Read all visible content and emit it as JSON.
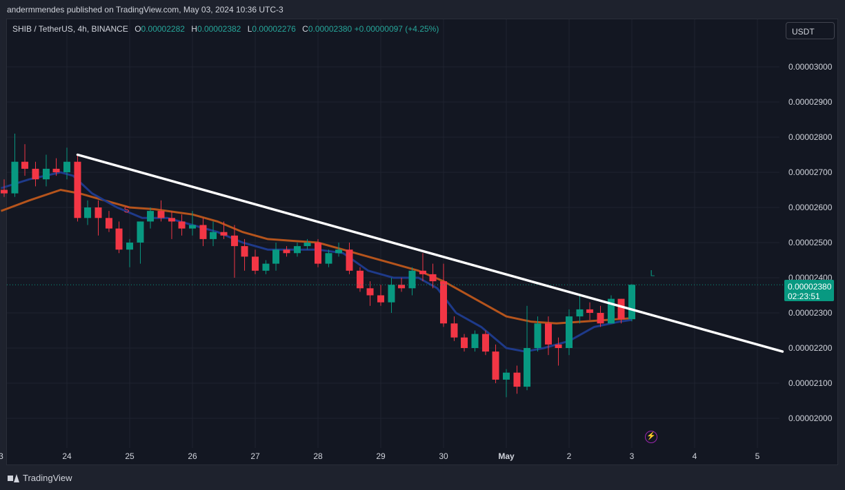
{
  "caption": "andermmendes published on TradingView.com, May 03, 2024 10:36 UTC-3",
  "legend": {
    "symbol": "SHIB / TetherUS, 4h, BINANCE",
    "o_label": "O",
    "o": "0.00002282",
    "h_label": "H",
    "h": "0.00002382",
    "l_label": "L",
    "l": "0.00002276",
    "c_label": "C",
    "c": "0.00002380",
    "change": "+0.00000097 (+4.25%)"
  },
  "currency": "USDT",
  "last_price": {
    "price": "0.00002380",
    "countdown": "02:23:51"
  },
  "brand": "TradingView",
  "chart_data": {
    "type": "candlestick",
    "y_unit_scale": "x 1e-8 USDT",
    "ylim": [
      1950,
      3090
    ],
    "y_tick_labels": [
      "0.00003000",
      "0.00002900",
      "0.00002800",
      "0.00002700",
      "0.00002600",
      "0.00002500",
      "0.00002400",
      "0.00002300",
      "0.00002200",
      "0.00002100",
      "0.00002000"
    ],
    "y_ticks": [
      3000,
      2900,
      2800,
      2700,
      2600,
      2500,
      2400,
      2300,
      2200,
      2100,
      2000
    ],
    "x_tick_labels": [
      "3",
      "24",
      "25",
      "26",
      "27",
      "28",
      "29",
      "30",
      "May",
      "2",
      "3",
      "4",
      "5"
    ],
    "x_ticks": [
      -0.05,
      1,
      2,
      3,
      4,
      5,
      6,
      7,
      8,
      9,
      10,
      11,
      12
    ],
    "candles": [
      {
        "t": 0.0,
        "o": 2650,
        "h": 2680,
        "l": 2630,
        "c": 2640
      },
      {
        "t": 0.17,
        "o": 2640,
        "h": 2810,
        "l": 2630,
        "c": 2730
      },
      {
        "t": 0.33,
        "o": 2730,
        "h": 2780,
        "l": 2690,
        "c": 2710
      },
      {
        "t": 0.5,
        "o": 2710,
        "h": 2730,
        "l": 2660,
        "c": 2680
      },
      {
        "t": 0.67,
        "o": 2680,
        "h": 2750,
        "l": 2660,
        "c": 2710
      },
      {
        "t": 0.83,
        "o": 2710,
        "h": 2740,
        "l": 2690,
        "c": 2700
      },
      {
        "t": 1.0,
        "o": 2700,
        "h": 2770,
        "l": 2680,
        "c": 2730
      },
      {
        "t": 1.17,
        "o": 2730,
        "h": 2750,
        "l": 2560,
        "c": 2570
      },
      {
        "t": 1.33,
        "o": 2570,
        "h": 2620,
        "l": 2550,
        "c": 2600
      },
      {
        "t": 1.5,
        "o": 2600,
        "h": 2620,
        "l": 2520,
        "c": 2570
      },
      {
        "t": 1.67,
        "o": 2570,
        "h": 2590,
        "l": 2530,
        "c": 2540
      },
      {
        "t": 1.83,
        "o": 2540,
        "h": 2560,
        "l": 2470,
        "c": 2480
      },
      {
        "t": 2.0,
        "o": 2480,
        "h": 2510,
        "l": 2430,
        "c": 2500
      },
      {
        "t": 2.17,
        "o": 2500,
        "h": 2560,
        "l": 2440,
        "c": 2560
      },
      {
        "t": 2.33,
        "o": 2560,
        "h": 2600,
        "l": 2540,
        "c": 2590
      },
      {
        "t": 2.5,
        "o": 2590,
        "h": 2620,
        "l": 2560,
        "c": 2570
      },
      {
        "t": 2.67,
        "o": 2570,
        "h": 2590,
        "l": 2510,
        "c": 2560
      },
      {
        "t": 2.83,
        "o": 2560,
        "h": 2580,
        "l": 2520,
        "c": 2540
      },
      {
        "t": 3.0,
        "o": 2540,
        "h": 2590,
        "l": 2520,
        "c": 2550
      },
      {
        "t": 3.17,
        "o": 2550,
        "h": 2570,
        "l": 2490,
        "c": 2510
      },
      {
        "t": 3.33,
        "o": 2510,
        "h": 2560,
        "l": 2490,
        "c": 2530
      },
      {
        "t": 3.5,
        "o": 2530,
        "h": 2560,
        "l": 2510,
        "c": 2520
      },
      {
        "t": 3.67,
        "o": 2520,
        "h": 2550,
        "l": 2400,
        "c": 2490
      },
      {
        "t": 3.83,
        "o": 2490,
        "h": 2510,
        "l": 2420,
        "c": 2460
      },
      {
        "t": 4.0,
        "o": 2460,
        "h": 2480,
        "l": 2410,
        "c": 2420
      },
      {
        "t": 4.17,
        "o": 2420,
        "h": 2450,
        "l": 2410,
        "c": 2440
      },
      {
        "t": 4.33,
        "o": 2440,
        "h": 2500,
        "l": 2420,
        "c": 2480
      },
      {
        "t": 4.5,
        "o": 2480,
        "h": 2490,
        "l": 2460,
        "c": 2470
      },
      {
        "t": 4.67,
        "o": 2470,
        "h": 2500,
        "l": 2460,
        "c": 2490
      },
      {
        "t": 4.83,
        "o": 2490,
        "h": 2510,
        "l": 2480,
        "c": 2500
      },
      {
        "t": 5.0,
        "o": 2500,
        "h": 2510,
        "l": 2430,
        "c": 2440
      },
      {
        "t": 5.17,
        "o": 2440,
        "h": 2480,
        "l": 2430,
        "c": 2470
      },
      {
        "t": 5.33,
        "o": 2470,
        "h": 2500,
        "l": 2460,
        "c": 2480
      },
      {
        "t": 5.5,
        "o": 2480,
        "h": 2500,
        "l": 2410,
        "c": 2420
      },
      {
        "t": 5.67,
        "o": 2420,
        "h": 2430,
        "l": 2360,
        "c": 2370
      },
      {
        "t": 5.83,
        "o": 2370,
        "h": 2390,
        "l": 2320,
        "c": 2350
      },
      {
        "t": 6.0,
        "o": 2350,
        "h": 2380,
        "l": 2320,
        "c": 2330
      },
      {
        "t": 6.17,
        "o": 2330,
        "h": 2400,
        "l": 2300,
        "c": 2380
      },
      {
        "t": 6.33,
        "o": 2380,
        "h": 2400,
        "l": 2360,
        "c": 2370
      },
      {
        "t": 6.5,
        "o": 2370,
        "h": 2430,
        "l": 2350,
        "c": 2420
      },
      {
        "t": 6.67,
        "o": 2420,
        "h": 2470,
        "l": 2390,
        "c": 2410
      },
      {
        "t": 6.83,
        "o": 2410,
        "h": 2440,
        "l": 2370,
        "c": 2390
      },
      {
        "t": 7.0,
        "o": 2390,
        "h": 2440,
        "l": 2260,
        "c": 2270
      },
      {
        "t": 7.17,
        "o": 2270,
        "h": 2290,
        "l": 2220,
        "c": 2230
      },
      {
        "t": 7.33,
        "o": 2230,
        "h": 2240,
        "l": 2190,
        "c": 2200
      },
      {
        "t": 7.5,
        "o": 2200,
        "h": 2250,
        "l": 2190,
        "c": 2240
      },
      {
        "t": 7.67,
        "o": 2240,
        "h": 2250,
        "l": 2180,
        "c": 2190
      },
      {
        "t": 7.83,
        "o": 2190,
        "h": 2210,
        "l": 2100,
        "c": 2110
      },
      {
        "t": 8.0,
        "o": 2110,
        "h": 2140,
        "l": 2060,
        "c": 2130
      },
      {
        "t": 8.17,
        "o": 2130,
        "h": 2150,
        "l": 2070,
        "c": 2090
      },
      {
        "t": 8.33,
        "o": 2090,
        "h": 2320,
        "l": 2080,
        "c": 2200
      },
      {
        "t": 8.5,
        "o": 2200,
        "h": 2290,
        "l": 2190,
        "c": 2270
      },
      {
        "t": 8.67,
        "o": 2270,
        "h": 2290,
        "l": 2180,
        "c": 2210
      },
      {
        "t": 8.83,
        "o": 2210,
        "h": 2230,
        "l": 2150,
        "c": 2200
      },
      {
        "t": 9.0,
        "o": 2200,
        "h": 2310,
        "l": 2180,
        "c": 2290
      },
      {
        "t": 9.17,
        "o": 2290,
        "h": 2350,
        "l": 2270,
        "c": 2310
      },
      {
        "t": 9.33,
        "o": 2310,
        "h": 2330,
        "l": 2280,
        "c": 2300
      },
      {
        "t": 9.5,
        "o": 2300,
        "h": 2320,
        "l": 2260,
        "c": 2270
      },
      {
        "t": 9.67,
        "o": 2270,
        "h": 2350,
        "l": 2270,
        "c": 2340
      },
      {
        "t": 9.83,
        "o": 2340,
        "h": 2340,
        "l": 2270,
        "c": 2282
      },
      {
        "t": 10.0,
        "o": 2282,
        "h": 2382,
        "l": 2276,
        "c": 2380
      }
    ],
    "ma_fast": {
      "color": "#1e3a8a",
      "points": [
        [
          -0.05,
          2655
        ],
        [
          0.4,
          2680
        ],
        [
          0.9,
          2700
        ],
        [
          1.1,
          2690
        ],
        [
          1.4,
          2640
        ],
        [
          1.8,
          2600
        ],
        [
          2.2,
          2570
        ],
        [
          2.6,
          2570
        ],
        [
          3.0,
          2550
        ],
        [
          3.4,
          2530
        ],
        [
          3.8,
          2500
        ],
        [
          4.2,
          2480
        ],
        [
          4.6,
          2480
        ],
        [
          5.0,
          2480
        ],
        [
          5.4,
          2470
        ],
        [
          5.8,
          2420
        ],
        [
          6.2,
          2400
        ],
        [
          6.6,
          2400
        ],
        [
          6.9,
          2370
        ],
        [
          7.2,
          2300
        ],
        [
          7.6,
          2260
        ],
        [
          8.0,
          2200
        ],
        [
          8.3,
          2190
        ],
        [
          8.6,
          2200
        ],
        [
          9.0,
          2220
        ],
        [
          9.4,
          2260
        ],
        [
          9.8,
          2275
        ],
        [
          10.0,
          2280
        ]
      ]
    },
    "ma_slow": {
      "color": "#b5541c",
      "points": [
        [
          -0.05,
          2590
        ],
        [
          0.4,
          2620
        ],
        [
          0.9,
          2650
        ],
        [
          1.2,
          2640
        ],
        [
          1.6,
          2620
        ],
        [
          2.0,
          2600
        ],
        [
          2.4,
          2595
        ],
        [
          3.0,
          2580
        ],
        [
          3.4,
          2560
        ],
        [
          3.8,
          2530
        ],
        [
          4.2,
          2510
        ],
        [
          4.6,
          2505
        ],
        [
          5.0,
          2500
        ],
        [
          5.4,
          2480
        ],
        [
          5.8,
          2460
        ],
        [
          6.2,
          2440
        ],
        [
          6.6,
          2420
        ],
        [
          7.0,
          2390
        ],
        [
          7.3,
          2360
        ],
        [
          7.6,
          2330
        ],
        [
          8.0,
          2290
        ],
        [
          8.4,
          2275
        ],
        [
          8.8,
          2270
        ],
        [
          9.2,
          2275
        ],
        [
          9.6,
          2280
        ],
        [
          10.0,
          2285
        ]
      ]
    },
    "trendline": {
      "color": "#ffffff",
      "from": [
        1.17,
        2750
      ],
      "to": [
        12.4,
        2190
      ]
    },
    "last_price_level": 2380,
    "markers": [
      {
        "t": 1.95,
        "price": 2585,
        "label": "S",
        "color": "#f23645"
      },
      {
        "t": 10.33,
        "price": 2405,
        "label": "L",
        "color": "#089981"
      }
    ],
    "up_color": "#089981",
    "down_color": "#f23645",
    "grid": true
  }
}
